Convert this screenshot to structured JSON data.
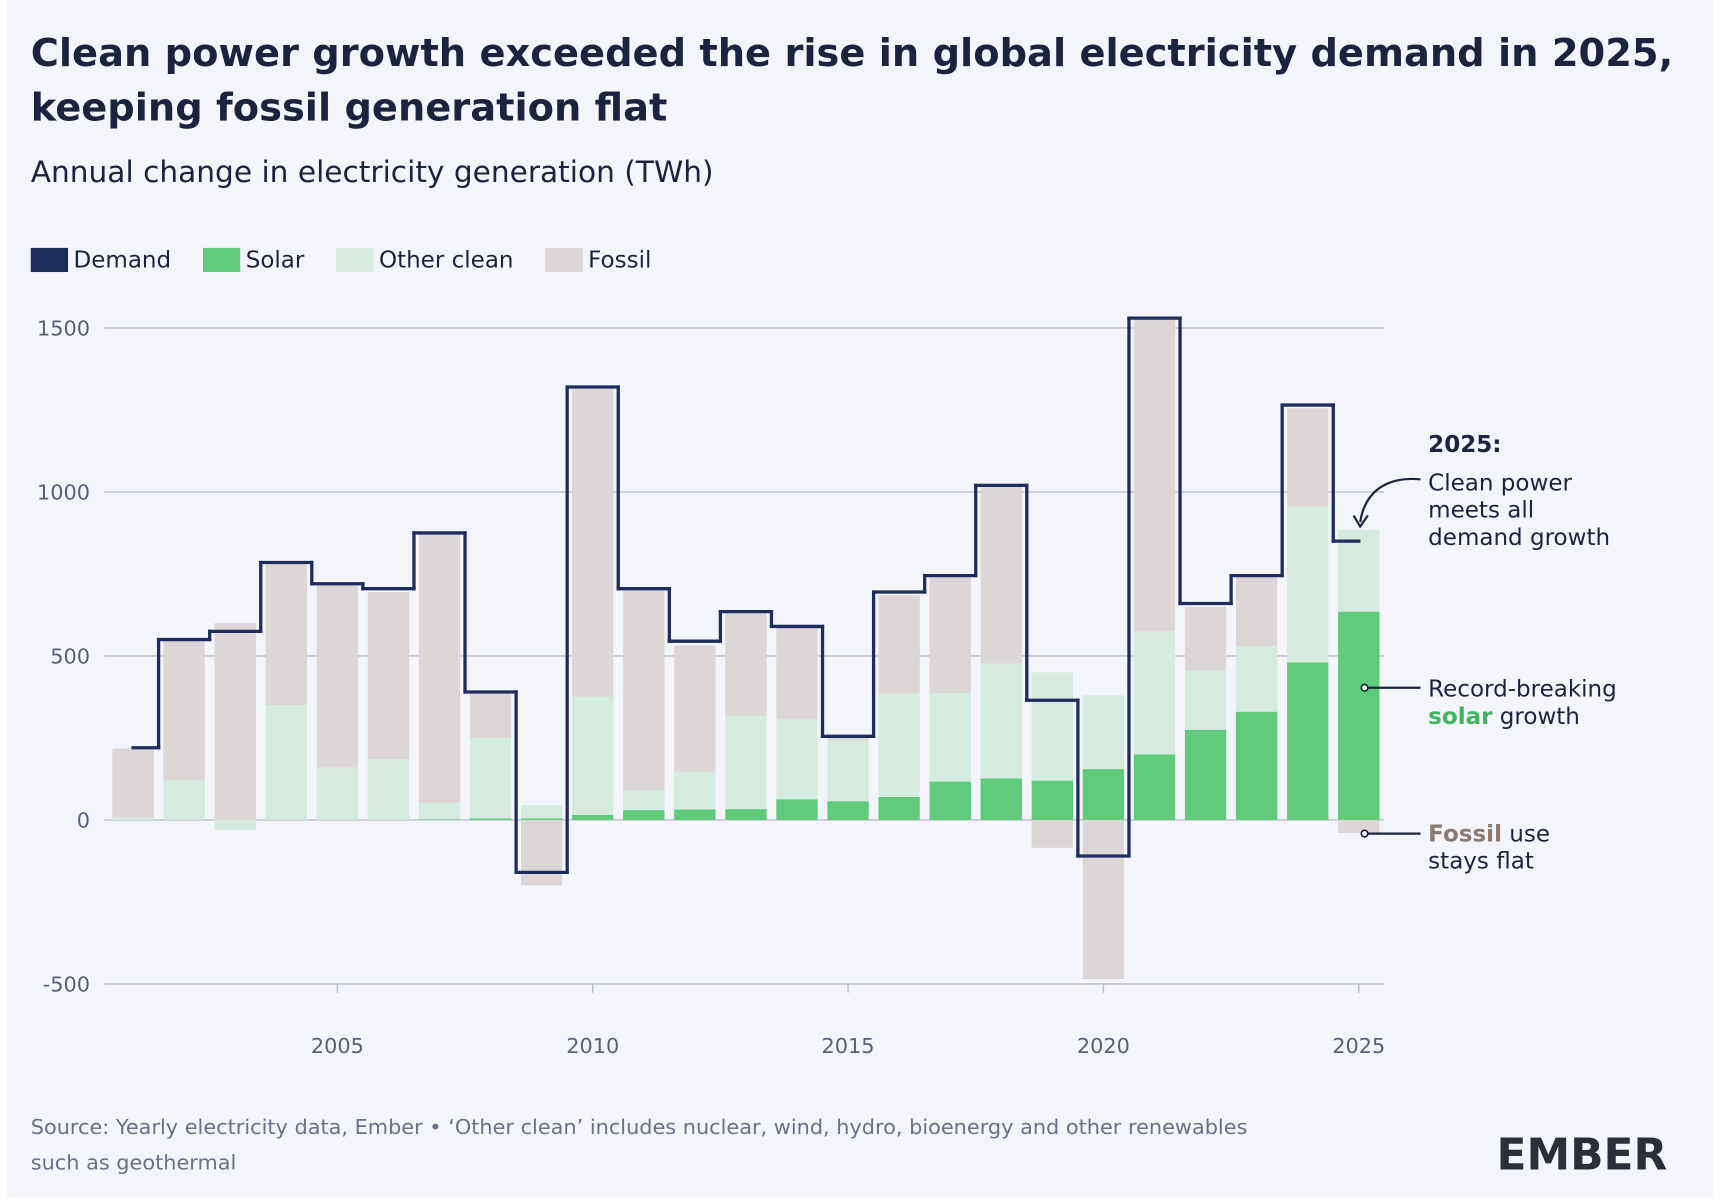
{
  "chart_data": {
    "type": "bar",
    "title": [
      "Clean power growth exceeded the rise in global electricity demand in 2025,",
      "keeping fossil generation flat"
    ],
    "subtitle": "Annual change in electricity generation (TWh)",
    "x": [
      2001,
      2002,
      2003,
      2004,
      2005,
      2006,
      2007,
      2008,
      2009,
      2010,
      2011,
      2012,
      2013,
      2014,
      2015,
      2016,
      2017,
      2018,
      2019,
      2020,
      2021,
      2022,
      2023,
      2024,
      2025
    ],
    "series": [
      {
        "name": "Demand",
        "type": "step",
        "color": "#1f2d5c",
        "values": [
          220,
          550,
          575,
          785,
          720,
          705,
          875,
          390,
          -160,
          1320,
          705,
          545,
          635,
          590,
          255,
          695,
          745,
          1020,
          365,
          -110,
          1530,
          660,
          745,
          1265,
          850
        ]
      },
      {
        "name": "Solar",
        "type": "bar",
        "color": "#5fcb7a",
        "values": [
          0,
          0,
          0,
          0,
          0,
          0,
          2,
          5,
          5,
          15,
          30,
          32,
          33,
          63,
          57,
          70,
          117,
          127,
          120,
          155,
          200,
          275,
          330,
          480,
          635
        ]
      },
      {
        "name": "Other clean",
        "type": "bar",
        "color": "#d6ebdf",
        "values": [
          8,
          120,
          -30,
          350,
          160,
          185,
          50,
          245,
          40,
          360,
          60,
          115,
          285,
          245,
          185,
          315,
          270,
          350,
          330,
          225,
          375,
          180,
          200,
          475,
          250
        ]
      },
      {
        "name": "Fossil",
        "type": "bar",
        "color": "#dcd6d6",
        "values": [
          210,
          430,
          600,
          430,
          555,
          510,
          820,
          135,
          -200,
          940,
          610,
          385,
          320,
          280,
          10,
          300,
          355,
          540,
          -85,
          -485,
          950,
          195,
          215,
          300,
          -40
        ]
      }
    ],
    "xlim": [
      2000.5,
      2025.5
    ],
    "xticks": [
      2005,
      2010,
      2015,
      2020,
      2025
    ],
    "ylim": [
      -500,
      1500
    ],
    "yticks": [
      -500,
      0,
      500,
      1000,
      1500
    ],
    "grid": true,
    "legend": "top-left",
    "annotations": [
      {
        "heading": "2025:",
        "lines": [
          "Clean power",
          "meets all",
          "demand growth"
        ]
      },
      {
        "line1": "Record-breaking",
        "highlight": "solar",
        "line2": "growth"
      },
      {
        "highlight": "Fossil",
        "line1": "use",
        "line2": "stays flat"
      }
    ],
    "source": [
      "Source: Yearly electricity data, Ember • ‘Other clean’ includes nuclear, wind, hydro, bioenergy and other renewables",
      "such as geothermal"
    ],
    "logo": "EMBER"
  }
}
